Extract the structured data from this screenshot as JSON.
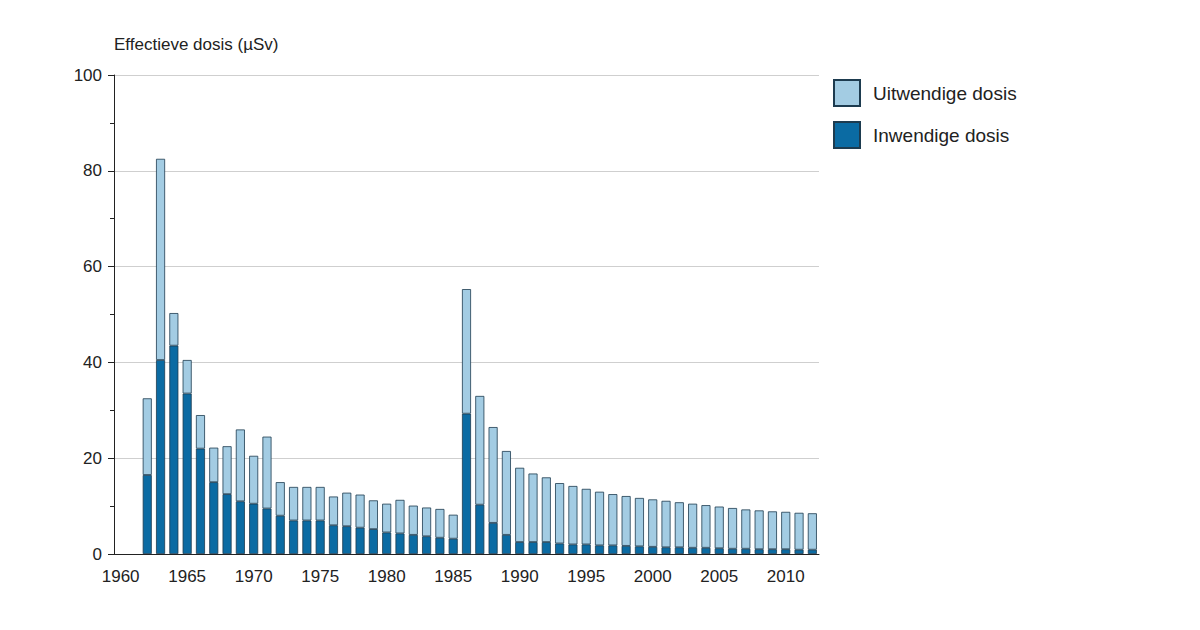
{
  "chart_data": {
    "type": "bar",
    "y_label": "Effectieve dosis (µSv)",
    "categories": [
      "1960",
      null,
      null,
      null,
      null,
      "1965",
      null,
      null,
      null,
      null,
      "1970",
      null,
      null,
      null,
      null,
      "1975",
      null,
      null,
      null,
      null,
      "1980",
      null,
      null,
      null,
      null,
      "1985",
      null,
      null,
      null,
      null,
      "1990",
      null,
      null,
      null,
      null,
      "1995",
      null,
      null,
      null,
      null,
      "2000",
      null,
      null,
      null,
      null,
      "2005",
      null,
      null,
      null,
      null,
      "2010",
      null,
      null
    ],
    "series": [
      {
        "name": "Uitwendige dosis",
        "color": "#a3cce3",
        "values": [
          null,
          null,
          16,
          42,
          6.8,
          7,
          7,
          7.2,
          10,
          15,
          10,
          15,
          7,
          7,
          7,
          7,
          6,
          7,
          6.9,
          6,
          6,
          7,
          6.1,
          6,
          6,
          5,
          26,
          22.7,
          20,
          17.5,
          15.5,
          14.3,
          13.5,
          12.6,
          12.2,
          11.6,
          11.2,
          10.7,
          10.4,
          10.1,
          9.9,
          9.7,
          9.4,
          9.2,
          8.9,
          8.7,
          8.5,
          8.2,
          8.1,
          7.9,
          7.8,
          7.7,
          7.6
        ]
      },
      {
        "name": "Inwendige dosis",
        "color": "#0b6ba3",
        "values": [
          null,
          null,
          16.5,
          40.5,
          43.5,
          33.5,
          22,
          15,
          12.5,
          11,
          10.5,
          9.5,
          8,
          7,
          7,
          7,
          6,
          5.8,
          5.5,
          5.2,
          4.5,
          4.3,
          4,
          3.7,
          3.4,
          3.2,
          29.3,
          10.3,
          6.5,
          4,
          2.5,
          2.5,
          2.5,
          2.2,
          2,
          2,
          1.8,
          1.8,
          1.7,
          1.6,
          1.5,
          1.4,
          1.4,
          1.3,
          1.3,
          1.2,
          1.1,
          1.1,
          1,
          1,
          1,
          0.9,
          0.9
        ]
      }
    ],
    "stacked": true,
    "ylim": [
      0,
      100
    ],
    "yticks": [
      0,
      20,
      40,
      60,
      80,
      100
    ],
    "grid": true,
    "legend": "upper right"
  }
}
